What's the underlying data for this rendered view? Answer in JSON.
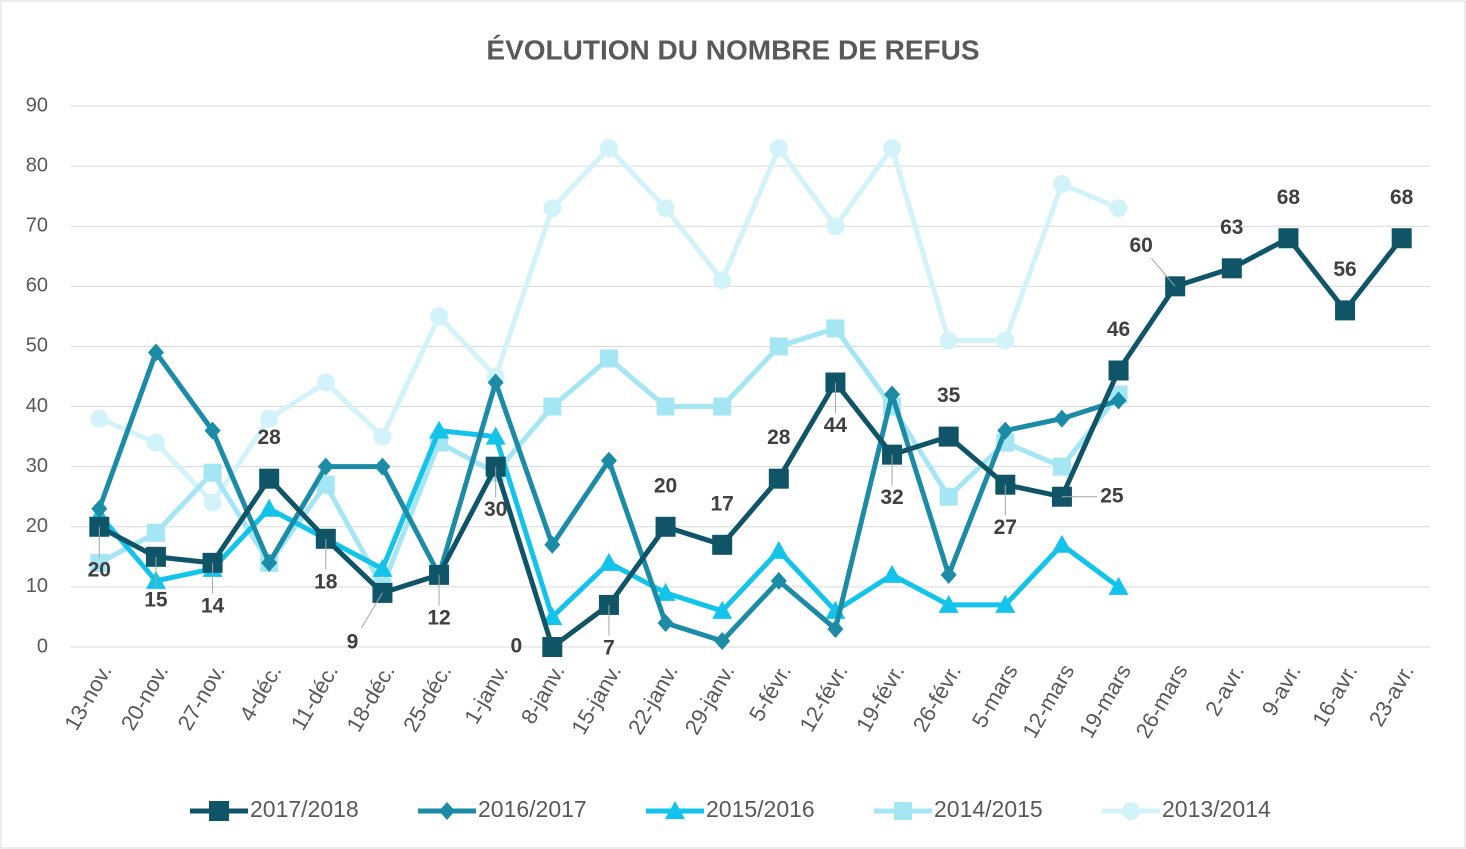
{
  "chart_data": {
    "type": "line",
    "title": "ÉVOLUTION DU NOMBRE DE REFUS",
    "categories": [
      "13-nov.",
      "20-nov.",
      "27-nov.",
      "4-déc.",
      "11-déc.",
      "18-déc.",
      "25-déc.",
      "1-janv.",
      "8-janv.",
      "15-janv.",
      "22-janv.",
      "29-janv.",
      "5-févr.",
      "12-févr.",
      "19-févr.",
      "26-févr.",
      "5-mars",
      "12-mars",
      "19-mars",
      "26-mars",
      "2-avr.",
      "9-avr.",
      "16-avr.",
      "23-avr."
    ],
    "series": [
      {
        "name": "2017/2018",
        "color": "#0f5567",
        "marker": "square",
        "values": [
          20,
          15,
          14,
          28,
          18,
          9,
          12,
          30,
          0,
          7,
          20,
          17,
          28,
          44,
          32,
          35,
          27,
          25,
          46,
          60,
          63,
          68,
          56,
          68
        ],
        "data_labels": true
      },
      {
        "name": "2016/2017",
        "color": "#1b8ba6",
        "marker": "diamond",
        "values": [
          23,
          49,
          36,
          14,
          30,
          30,
          12,
          44,
          17,
          31,
          4,
          1,
          11,
          3,
          42,
          12,
          36,
          38,
          41,
          null,
          null,
          null,
          null,
          null
        ]
      },
      {
        "name": "2015/2016",
        "color": "#12c3ea",
        "marker": "triangle",
        "values": [
          22,
          11,
          13,
          23,
          18,
          13,
          36,
          35,
          5,
          14,
          9,
          6,
          16,
          6,
          12,
          7,
          7,
          17,
          10,
          null,
          null,
          null,
          null,
          null
        ]
      },
      {
        "name": "2014/2015",
        "color": "#a5e6f4",
        "marker": "square",
        "values": [
          14,
          19,
          29,
          14,
          27,
          10,
          34,
          29,
          40,
          48,
          40,
          40,
          50,
          53,
          40,
          25,
          34,
          30,
          42,
          null,
          null,
          null,
          null,
          null
        ]
      },
      {
        "name": "2013/2014",
        "color": "#d3f3fa",
        "marker": "circle",
        "values": [
          38,
          34,
          24,
          38,
          44,
          35,
          55,
          45,
          73,
          83,
          73,
          61,
          83,
          70,
          83,
          51,
          51,
          77,
          73,
          null,
          null,
          null,
          null,
          null
        ]
      }
    ],
    "ylim": [
      0,
      90
    ],
    "yticks": [
      0,
      10,
      20,
      30,
      40,
      50,
      60,
      70,
      80,
      90
    ],
    "grid": true,
    "legend": "bottom"
  }
}
